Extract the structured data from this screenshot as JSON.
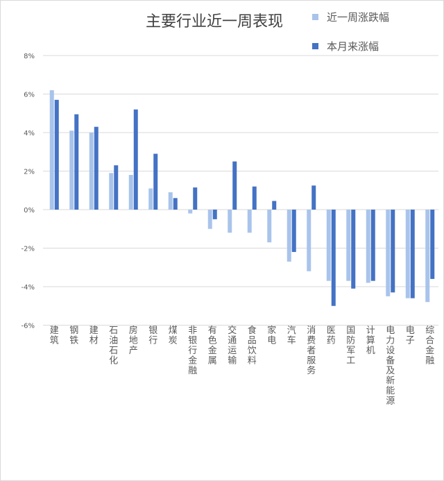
{
  "chart_data": {
    "type": "bar",
    "title": "主要行业近一周表现",
    "xlabel": "",
    "ylabel": "",
    "ylim": [
      -6,
      8
    ],
    "y_ticks": [
      "8%",
      "6%",
      "4%",
      "2%",
      "0%",
      "-2%",
      "-4%",
      "-6%"
    ],
    "y_tick_values": [
      8,
      6,
      4,
      2,
      0,
      -2,
      -4,
      -6
    ],
    "y_unit": "%",
    "grid": true,
    "legend_position": "top-right",
    "categories": [
      "建筑",
      "钢铁",
      "建材",
      "石油石化",
      "房地产",
      "银行",
      "煤炭",
      "非银行金融",
      "有色金属",
      "交通运输",
      "食品饮料",
      "家电",
      "汽车",
      "消费者服务",
      "医药",
      "国防军工",
      "计算机",
      "电力设备及新能源",
      "电子",
      "综合金融"
    ],
    "series": [
      {
        "name": "近一周涨跌幅",
        "color": "#a9c4eb",
        "values": [
          6.2,
          4.1,
          4.0,
          1.9,
          1.8,
          1.1,
          0.9,
          -0.2,
          -1.0,
          -1.2,
          -1.2,
          -1.7,
          -2.7,
          -3.2,
          -3.7,
          -3.7,
          -3.8,
          -4.5,
          -4.6,
          -4.8
        ]
      },
      {
        "name": "本月来涨幅",
        "color": "#4472c4",
        "values": [
          5.7,
          4.95,
          4.3,
          2.3,
          5.2,
          2.9,
          0.6,
          1.15,
          -0.5,
          2.5,
          1.2,
          0.45,
          -2.2,
          1.25,
          -5.0,
          -4.1,
          -3.7,
          -4.3,
          -4.6,
          -3.6
        ]
      }
    ]
  },
  "colors": {
    "grid": "#d9d9d9",
    "axis_text": "#595959",
    "title_text": "#404040"
  }
}
